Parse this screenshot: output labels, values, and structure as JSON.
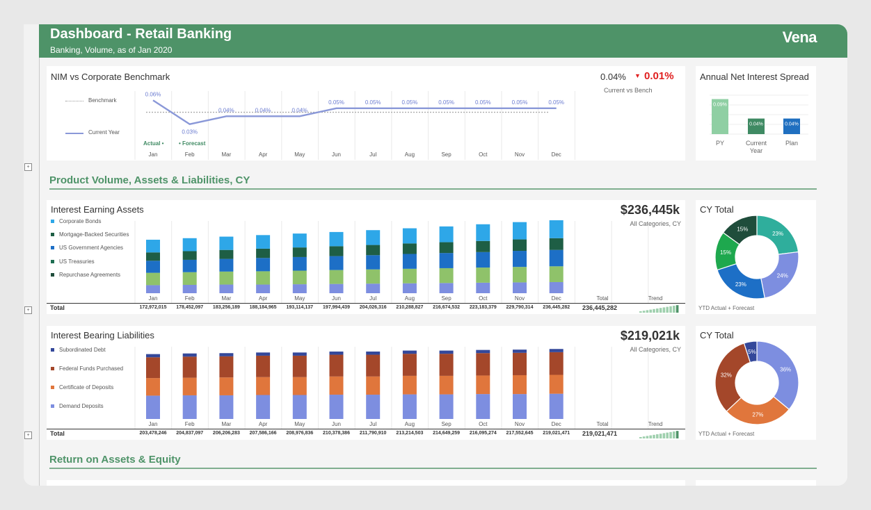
{
  "header": {
    "title": "Dashboard - Retail Banking",
    "subtitle": "Banking, Volume, as of Jan 2020",
    "logo": "Vena"
  },
  "colors": {
    "header_green": "#4e9368",
    "accent_red": "#e02020",
    "line_blue": "#8a98d8"
  },
  "months": [
    "Jan",
    "Feb",
    "Mar",
    "Apr",
    "May",
    "Jun",
    "Jul",
    "Aug",
    "Sep",
    "Oct",
    "Nov",
    "Dec"
  ],
  "nim": {
    "title": "NIM vs Corporate Benchmark",
    "current_value": "0.04%",
    "delta_icon": "▼",
    "delta_value": "0.01%",
    "caption": "Current  vs Bench",
    "legend_benchmark": "Benchmark",
    "legend_current": "Current Year",
    "actual_label": "Actual •",
    "forecast_label": "• Forecast",
    "point_labels": [
      "0.06%",
      "0.03%",
      "0.04%",
      "0.04%",
      "0.04%",
      "0.05%",
      "0.05%",
      "0.05%",
      "0.05%",
      "0.05%",
      "0.05%",
      "0.05%"
    ]
  },
  "spread": {
    "title": "Annual Net Interest Spread",
    "categories": [
      "PY",
      "Current Year",
      "Plan"
    ],
    "labels": [
      "0.09%",
      "0.04%",
      "0.04%"
    ]
  },
  "section_volume": {
    "title": "Product Volume, Assets & Liabilities, CY"
  },
  "section_return": {
    "title": "Return on Assets & Equity"
  },
  "assets": {
    "title": "Interest Earning Assets",
    "big_value": "$236,445k",
    "caption": "All Categories, CY",
    "legend": [
      "Corporate Bonds",
      "Mortgage-Backed Securities",
      "US Government Agencies",
      "US Treasuries",
      "Repurchase Agreements"
    ],
    "total_label": "Total",
    "col_total": "Total",
    "col_trend": "Trend",
    "totals": [
      "172,972,015",
      "178,452,097",
      "183,256,189",
      "188,184,965",
      "193,114,137",
      "197,994,439",
      "204,026,316",
      "210,288,827",
      "216,674,532",
      "223,183,379",
      "229,790,314",
      "236,445,282"
    ],
    "grand_total": "236,445,282",
    "donut_title": "CY Total",
    "donut_caption": "YTD Actual + Forecast",
    "donut_labels": [
      "23%",
      "24%",
      "23%",
      "15%",
      "15%"
    ]
  },
  "liabilities": {
    "title": "Interest Bearing Liabilities",
    "big_value": "$219,021k",
    "caption": "All Categories, CY",
    "legend": [
      "Subordinated Debt",
      "Federal Funds Purchased",
      "Certificate of Deposits",
      "Demand Deposits"
    ],
    "total_label": "Total",
    "col_total": "Total",
    "col_trend": "Trend",
    "totals": [
      "203,478,246",
      "204,837,097",
      "206,206,283",
      "207,586,166",
      "208,976,836",
      "210,378,386",
      "211,790,910",
      "213,214,503",
      "214,649,259",
      "216,095,274",
      "217,552,645",
      "219,021,471"
    ],
    "grand_total": "219,021,471",
    "donut_title": "CY Total",
    "donut_caption": "YTD Actual + Forecast",
    "donut_labels": [
      "36%",
      "27%",
      "32%",
      "5%"
    ]
  },
  "chart_data": [
    {
      "type": "line",
      "title": "NIM vs Corporate Benchmark",
      "x": [
        "Jan",
        "Feb",
        "Mar",
        "Apr",
        "May",
        "Jun",
        "Jul",
        "Aug",
        "Sep",
        "Oct",
        "Nov",
        "Dec"
      ],
      "series": [
        {
          "name": "Current Year",
          "values": [
            0.06,
            0.03,
            0.04,
            0.04,
            0.04,
            0.05,
            0.05,
            0.05,
            0.05,
            0.05,
            0.05,
            0.05
          ],
          "color": "#8a98d8"
        },
        {
          "name": "Benchmark",
          "values": [
            0.045,
            0.045,
            0.045,
            0.045,
            0.045,
            0.045,
            0.045,
            0.045,
            0.045,
            0.045,
            0.045,
            0.045
          ],
          "color": "#aaaaaa"
        }
      ],
      "ylim": [
        0,
        0.07
      ]
    },
    {
      "type": "bar",
      "title": "Annual Net Interest Spread",
      "categories": [
        "PY",
        "Current Year",
        "Plan"
      ],
      "values": [
        0.09,
        0.04,
        0.04
      ],
      "colors": [
        "#8fcfa3",
        "#3f8a63",
        "#1f6fc0"
      ]
    },
    {
      "type": "bar",
      "stacked": true,
      "title": "Interest Earning Assets",
      "categories": [
        "Jan",
        "Feb",
        "Mar",
        "Apr",
        "May",
        "Jun",
        "Jul",
        "Aug",
        "Sep",
        "Oct",
        "Nov",
        "Dec"
      ],
      "series": [
        {
          "name": "Repurchase Agreements",
          "color": "#7d8ee0",
          "values": [
            26,
            27,
            28,
            28,
            29,
            30,
            31,
            32,
            33,
            34,
            35,
            36
          ]
        },
        {
          "name": "US Treasuries",
          "color": "#8fc26a",
          "values": [
            40,
            41,
            42,
            43,
            44,
            45,
            46,
            47,
            48,
            49,
            50,
            51
          ]
        },
        {
          "name": "US Government Agencies",
          "color": "#1d6fc6",
          "values": [
            39,
            40,
            41,
            43,
            44,
            45,
            46,
            48,
            49,
            50,
            52,
            53
          ]
        },
        {
          "name": "Mortgage-Backed Securities",
          "color": "#1e5e45",
          "values": [
            27,
            28,
            29,
            30,
            31,
            32,
            33,
            34,
            35,
            36,
            37,
            38
          ]
        },
        {
          "name": "Corporate Bonds",
          "color": "#2ea7e8",
          "values": [
            41,
            42,
            43,
            44,
            45,
            46,
            48,
            49,
            51,
            54,
            56,
            58
          ]
        }
      ],
      "ylim": [
        0,
        260
      ]
    },
    {
      "type": "pie",
      "title": "CY Total",
      "labels": [
        "Corporate Bonds",
        "US Treasuries",
        "US Government Agencies",
        "Mortgage-Backed Securities",
        "Repurchase Agreements"
      ],
      "values": [
        23,
        24,
        23,
        15,
        15
      ],
      "colors": [
        "#2fae9c",
        "#7d8ee0",
        "#1d6fc6",
        "#1ea84e",
        "#1f4d3b"
      ]
    },
    {
      "type": "bar",
      "stacked": true,
      "title": "Interest Bearing Liabilities",
      "categories": [
        "Jan",
        "Feb",
        "Mar",
        "Apr",
        "May",
        "Jun",
        "Jul",
        "Aug",
        "Sep",
        "Oct",
        "Nov",
        "Dec"
      ],
      "series": [
        {
          "name": "Demand Deposits",
          "color": "#7d8ee0",
          "values": [
            73,
            74,
            74,
            75,
            75,
            76,
            76,
            77,
            77,
            78,
            78,
            79
          ]
        },
        {
          "name": "Certificate of Deposits",
          "color": "#e0763c",
          "values": [
            55,
            55,
            56,
            56,
            56,
            57,
            57,
            58,
            58,
            58,
            59,
            59
          ]
        },
        {
          "name": "Federal Funds Purchased",
          "color": "#a4472a",
          "values": [
            65,
            66,
            66,
            67,
            67,
            68,
            68,
            69,
            69,
            70,
            70,
            71
          ]
        },
        {
          "name": "Subordinated Debt",
          "color": "#34489a",
          "values": [
            10,
            10,
            10,
            10,
            10,
            10,
            10,
            10,
            10,
            10,
            10,
            10
          ]
        }
      ],
      "ylim": [
        0,
        260
      ]
    },
    {
      "type": "pie",
      "title": "CY Total",
      "labels": [
        "Demand Deposits",
        "Certificate of Deposits",
        "Federal Funds Purchased",
        "Subordinated Debt"
      ],
      "values": [
        36,
        27,
        32,
        5
      ],
      "colors": [
        "#7d8ee0",
        "#e0763c",
        "#a4472a",
        "#34489a"
      ]
    }
  ]
}
